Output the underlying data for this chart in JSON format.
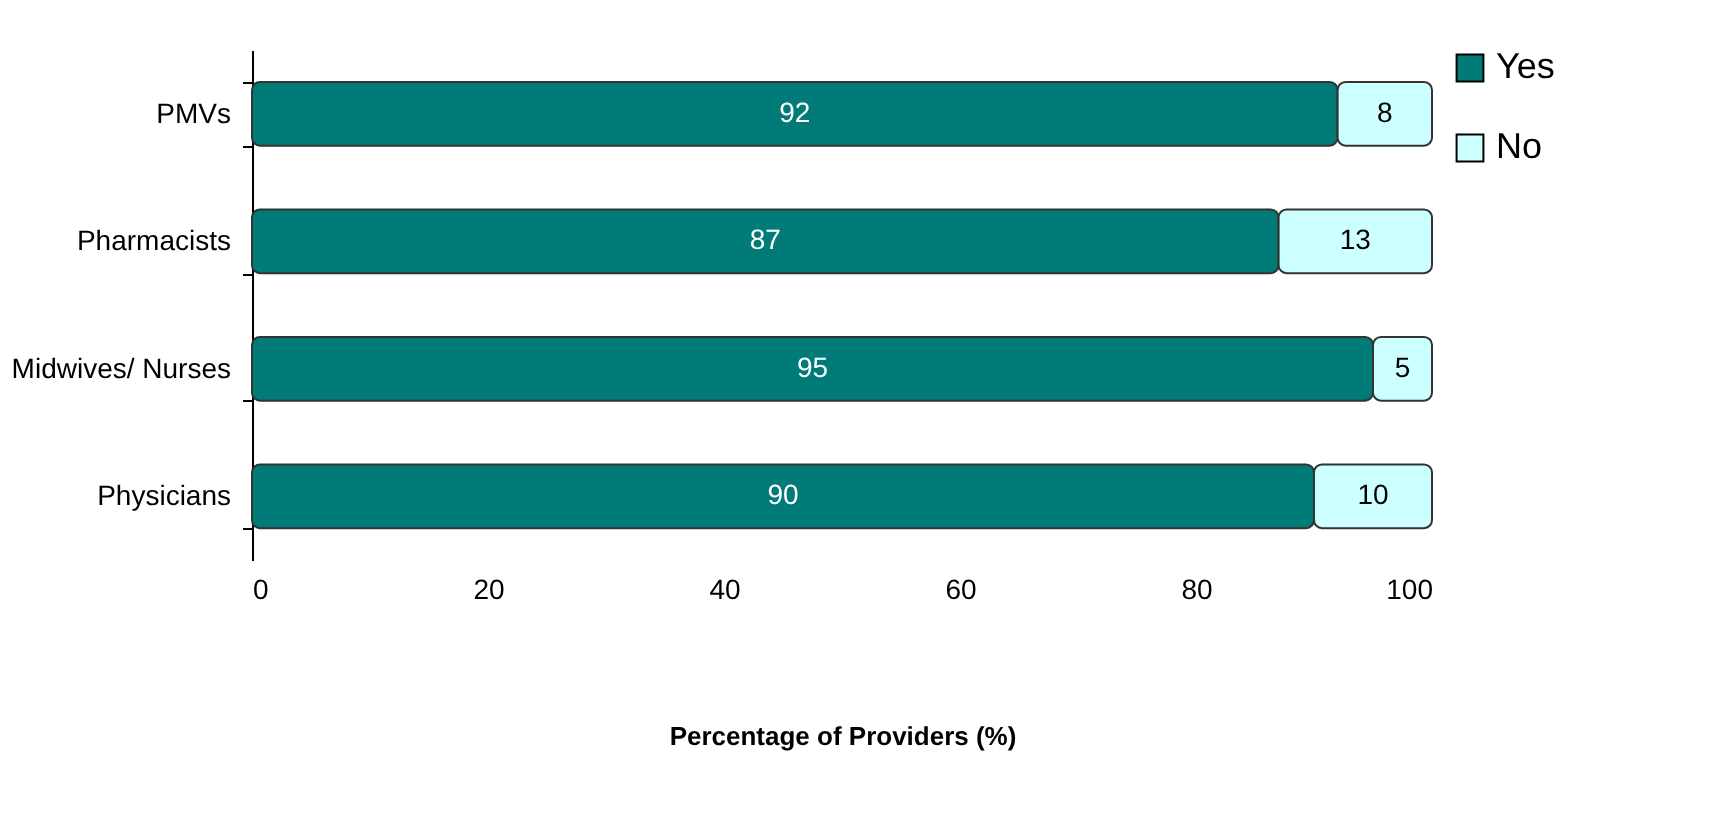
{
  "chart_data": {
    "type": "bar",
    "orientation": "horizontal",
    "stacked": true,
    "categories": [
      "PMVs",
      "Pharmacists",
      "Midwives/ Nurses",
      "Physicians"
    ],
    "series": [
      {
        "name": "Yes",
        "color": "#007b78",
        "values": [
          92,
          87,
          95,
          90
        ]
      },
      {
        "name": "No",
        "color": "#ccffff",
        "values": [
          8,
          13,
          5,
          10
        ]
      }
    ],
    "xlabel": "Percentage of Providers (%)",
    "xlim": [
      0,
      100
    ],
    "xticks": [
      0,
      20,
      40,
      60,
      80,
      100
    ],
    "data_labels": true,
    "legend": "right",
    "grid": false
  }
}
